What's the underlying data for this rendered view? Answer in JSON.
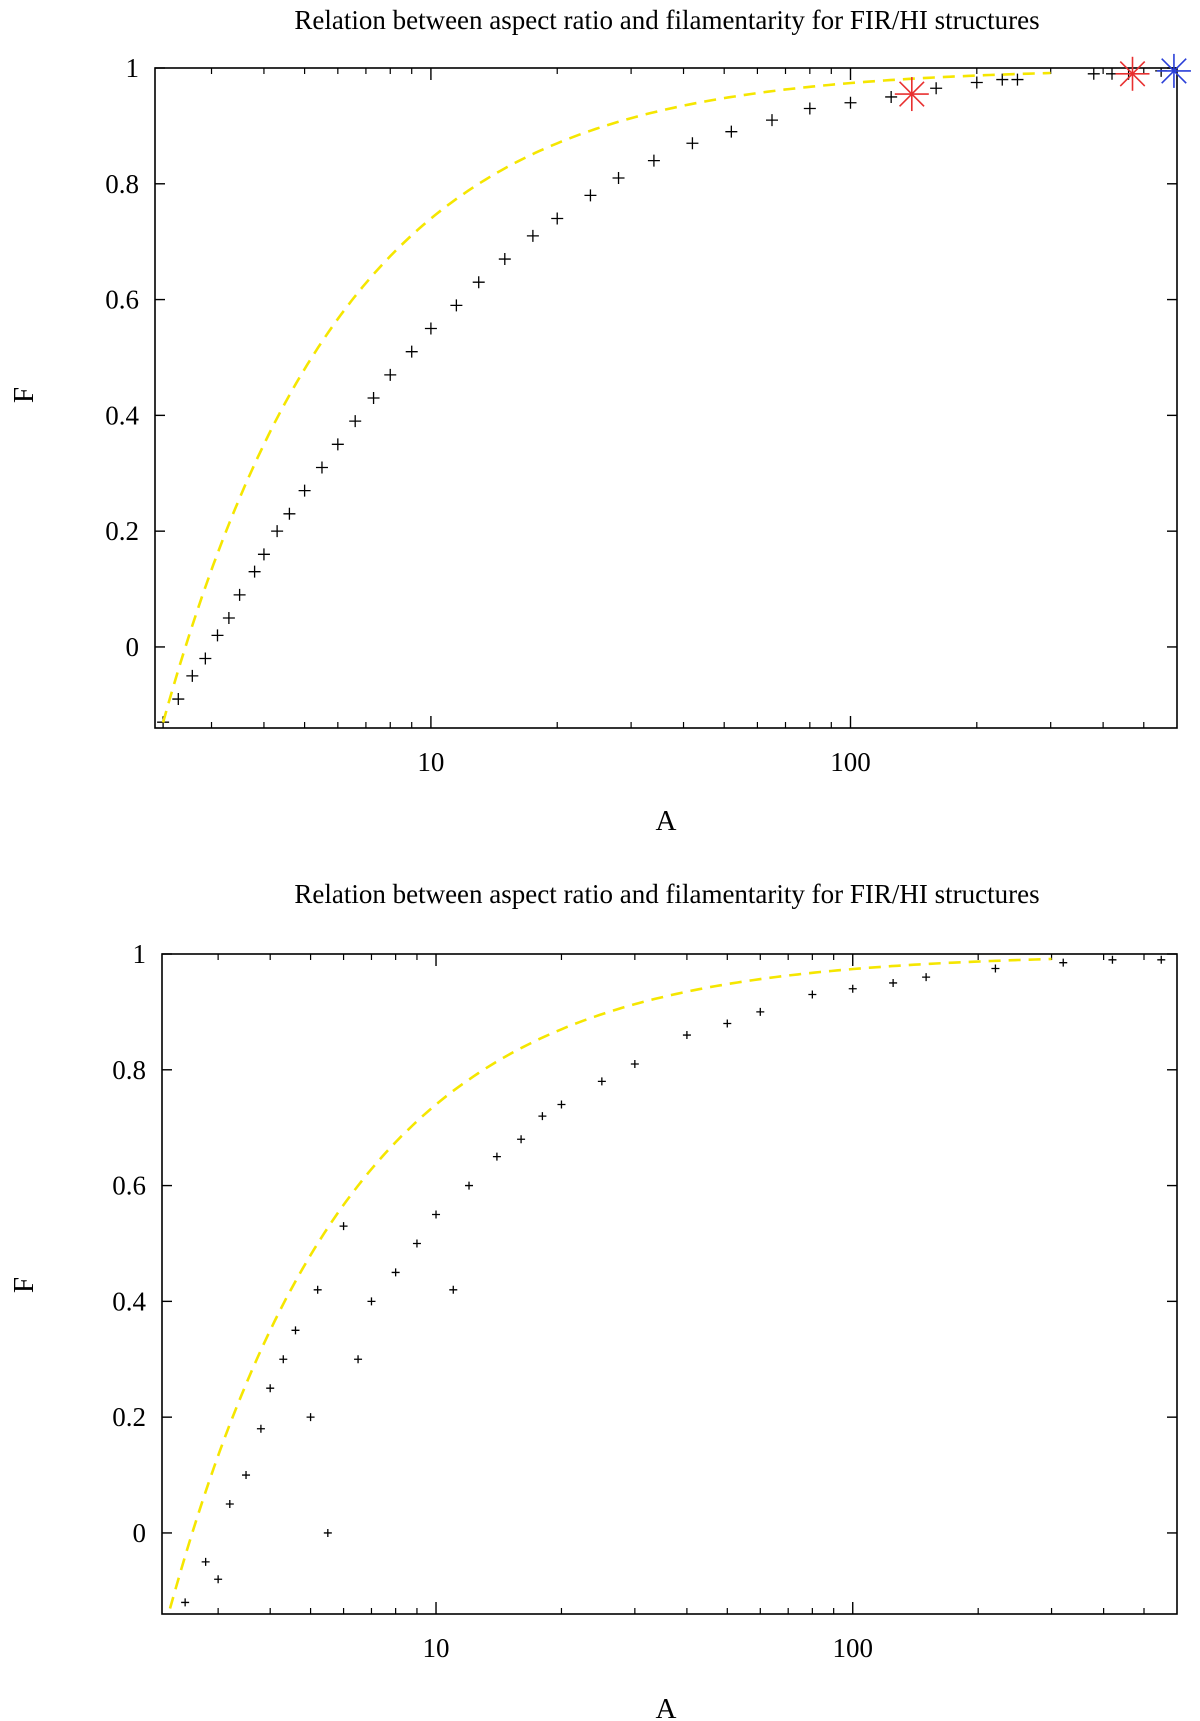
{
  "chart_data": [
    {
      "type": "scatter",
      "title": "Relation between aspect ratio and filamentarity for FIR/HI structures",
      "xlabel": "A",
      "ylabel": "F",
      "xscale": "log",
      "xlim": [
        2.2,
        600
      ],
      "ylim": [
        -0.14,
        1.0
      ],
      "xticks": [
        10,
        100
      ],
      "xtick_labels": [
        "10",
        "100"
      ],
      "yticks": [
        0,
        0.2,
        0.4,
        0.6,
        0.8,
        1
      ],
      "ytick_labels": [
        "0",
        "0.2",
        "0.4",
        "0.6",
        "0.8",
        "1"
      ],
      "grid": false,
      "legend": "none",
      "marker": "plus",
      "marker_color": "#000000",
      "fit_curve": {
        "style": "dashed",
        "color": "#f5e600",
        "x_range": [
          2.3,
          300
        ]
      },
      "series": [
        {
          "values": [
            {
              "x": 2.3,
              "y": -0.13
            },
            {
              "x": 2.5,
              "y": -0.09
            },
            {
              "x": 2.7,
              "y": -0.05
            },
            {
              "x": 2.9,
              "y": -0.02
            },
            {
              "x": 3.1,
              "y": 0.02
            },
            {
              "x": 3.3,
              "y": 0.05
            },
            {
              "x": 3.5,
              "y": 0.09
            },
            {
              "x": 3.8,
              "y": 0.13
            },
            {
              "x": 4.0,
              "y": 0.16
            },
            {
              "x": 4.3,
              "y": 0.2
            },
            {
              "x": 4.6,
              "y": 0.23
            },
            {
              "x": 5.0,
              "y": 0.27
            },
            {
              "x": 5.5,
              "y": 0.31
            },
            {
              "x": 6.0,
              "y": 0.35
            },
            {
              "x": 6.6,
              "y": 0.39
            },
            {
              "x": 7.3,
              "y": 0.43
            },
            {
              "x": 8.0,
              "y": 0.47
            },
            {
              "x": 9.0,
              "y": 0.51
            },
            {
              "x": 10.0,
              "y": 0.55
            },
            {
              "x": 11.5,
              "y": 0.59
            },
            {
              "x": 13.0,
              "y": 0.63
            },
            {
              "x": 15.0,
              "y": 0.67
            },
            {
              "x": 17.5,
              "y": 0.71
            },
            {
              "x": 20.0,
              "y": 0.74
            },
            {
              "x": 24.0,
              "y": 0.78
            },
            {
              "x": 28.0,
              "y": 0.81
            },
            {
              "x": 34.0,
              "y": 0.84
            },
            {
              "x": 42.0,
              "y": 0.87
            },
            {
              "x": 52.0,
              "y": 0.89
            },
            {
              "x": 65.0,
              "y": 0.91
            },
            {
              "x": 80.0,
              "y": 0.93
            },
            {
              "x": 100.0,
              "y": 0.94
            },
            {
              "x": 125.0,
              "y": 0.95
            },
            {
              "x": 160.0,
              "y": 0.965
            },
            {
              "x": 200.0,
              "y": 0.975
            },
            {
              "x": 230.0,
              "y": 0.98
            },
            {
              "x": 250.0,
              "y": 0.98
            },
            {
              "x": 380.0,
              "y": 0.99
            },
            {
              "x": 420.0,
              "y": 0.99
            },
            {
              "x": 460.0,
              "y": 0.99
            },
            {
              "x": 550.0,
              "y": 0.995
            }
          ]
        },
        {
          "marker": "asterisk",
          "color": "#e83030",
          "values": [
            {
              "x": 140,
              "y": 0.955
            },
            {
              "x": 470,
              "y": 0.99
            }
          ]
        },
        {
          "marker": "asterisk",
          "color": "#2a3fd8",
          "values": [
            {
              "x": 590,
              "y": 0.995
            }
          ]
        }
      ]
    },
    {
      "type": "scatter",
      "title": "Relation between aspect ratio and filamentarity for FIR/HI structures",
      "xlabel": "A",
      "ylabel": "F",
      "xscale": "log",
      "xlim": [
        2.2,
        600
      ],
      "ylim": [
        -0.14,
        1.0
      ],
      "xticks": [
        10,
        100
      ],
      "xtick_labels": [
        "10",
        "100"
      ],
      "yticks": [
        0,
        0.2,
        0.4,
        0.6,
        0.8,
        1
      ],
      "ytick_labels": [
        "0",
        "0.2",
        "0.4",
        "0.6",
        "0.8",
        "1"
      ],
      "grid": false,
      "legend": "none",
      "marker": "plus-small",
      "marker_color": "#000000",
      "fit_curve": {
        "style": "dashed",
        "color": "#f5e600",
        "x_range": [
          2.3,
          300
        ]
      },
      "series": [
        {
          "values": [
            {
              "x": 2.5,
              "y": -0.12
            },
            {
              "x": 2.8,
              "y": -0.05
            },
            {
              "x": 3.0,
              "y": -0.08
            },
            {
              "x": 3.2,
              "y": 0.05
            },
            {
              "x": 3.5,
              "y": 0.1
            },
            {
              "x": 3.8,
              "y": 0.18
            },
            {
              "x": 4.0,
              "y": 0.25
            },
            {
              "x": 4.3,
              "y": 0.3
            },
            {
              "x": 4.6,
              "y": 0.35
            },
            {
              "x": 5.0,
              "y": 0.2
            },
            {
              "x": 5.2,
              "y": 0.42
            },
            {
              "x": 5.5,
              "y": 0.0
            },
            {
              "x": 6.0,
              "y": 0.53
            },
            {
              "x": 6.5,
              "y": 0.3
            },
            {
              "x": 7.0,
              "y": 0.4
            },
            {
              "x": 8.0,
              "y": 0.45
            },
            {
              "x": 9.0,
              "y": 0.5
            },
            {
              "x": 10.0,
              "y": 0.55
            },
            {
              "x": 11.0,
              "y": 0.42
            },
            {
              "x": 12.0,
              "y": 0.6
            },
            {
              "x": 14.0,
              "y": 0.65
            },
            {
              "x": 16.0,
              "y": 0.68
            },
            {
              "x": 18.0,
              "y": 0.72
            },
            {
              "x": 20.0,
              "y": 0.74
            },
            {
              "x": 25.0,
              "y": 0.78
            },
            {
              "x": 30.0,
              "y": 0.81
            },
            {
              "x": 40.0,
              "y": 0.86
            },
            {
              "x": 50.0,
              "y": 0.88
            },
            {
              "x": 60.0,
              "y": 0.9
            },
            {
              "x": 80.0,
              "y": 0.93
            },
            {
              "x": 100.0,
              "y": 0.94
            },
            {
              "x": 125.0,
              "y": 0.95
            },
            {
              "x": 150.0,
              "y": 0.96
            },
            {
              "x": 220.0,
              "y": 0.975
            },
            {
              "x": 320.0,
              "y": 0.985
            },
            {
              "x": 420.0,
              "y": 0.99
            },
            {
              "x": 550.0,
              "y": 0.99
            }
          ]
        }
      ]
    }
  ]
}
